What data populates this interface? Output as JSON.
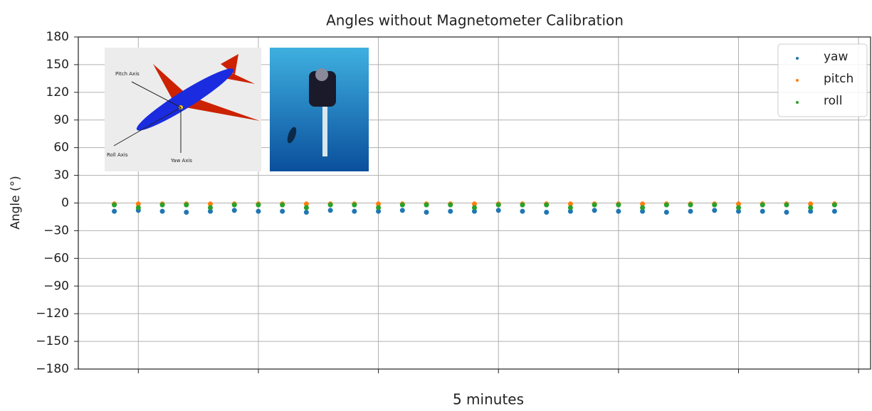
{
  "chart_data": {
    "type": "scatter",
    "title": "Angles without Magnetometer Calibration",
    "xlabel": "5 minutes",
    "ylabel": "Angle (°)",
    "annotations": [
      "Pitch Axis",
      "Roll Axis",
      "Yaw Axis"
    ],
    "x": [
      -0.2,
      0,
      0.2,
      0.4,
      0.6,
      0.8,
      1,
      1.2,
      1.4,
      1.6,
      1.8,
      2,
      2.2,
      2.4,
      2.6,
      2.8,
      3,
      3.2,
      3.4,
      3.6,
      3.8,
      4,
      4.2,
      4.4,
      4.6,
      4.8,
      5,
      5.2,
      5.4,
      5.6,
      5.8
    ],
    "series": [
      {
        "name": "yaw",
        "color": "#1f77b4",
        "values": [
          -9,
          -8,
          -9,
          -10,
          -9,
          -8,
          -9,
          -9,
          -10,
          -8,
          -9,
          -9,
          -8,
          -10,
          -9,
          -9,
          -8,
          -9,
          -10,
          -9,
          -8,
          -9,
          -9,
          -10,
          -9,
          -8,
          -9,
          -9,
          -10,
          -9,
          -9
        ]
      },
      {
        "name": "pitch",
        "color": "#ff7f0e",
        "values": [
          -1,
          -1,
          -1,
          -1,
          -1,
          -1,
          -1,
          -1,
          -1,
          -1,
          -1,
          -1,
          -1,
          -1,
          -1,
          -1,
          -1,
          -1,
          -1,
          -1,
          -1,
          -1,
          -1,
          -1,
          -1,
          -1,
          -1,
          -1,
          -1,
          -1,
          -1
        ]
      },
      {
        "name": "roll",
        "color": "#2ca02c",
        "values": [
          -2,
          -5,
          -2,
          -2,
          -5,
          -2,
          -2,
          -2,
          -5,
          -2,
          -2,
          -5,
          -2,
          -2,
          -2,
          -5,
          -2,
          -2,
          -2,
          -5,
          -2,
          -2,
          -5,
          -2,
          -2,
          -2,
          -5,
          -2,
          -2,
          -5,
          -2
        ]
      }
    ],
    "xlim": [
      -0.5,
      6.1
    ],
    "xticks": [
      0,
      1,
      2,
      3,
      4,
      5,
      6
    ],
    "ylim": [
      -180,
      180
    ],
    "yticks": [
      {
        "value": -180,
        "label": "−180"
      },
      {
        "value": -150,
        "label": "−150"
      },
      {
        "value": -120,
        "label": "−120"
      },
      {
        "value": -90,
        "label": "−90"
      },
      {
        "value": -60,
        "label": "−60"
      },
      {
        "value": -30,
        "label": "−30"
      },
      0,
      30,
      60,
      90,
      120,
      150,
      180
    ],
    "grid": true,
    "legend": "upper right"
  }
}
